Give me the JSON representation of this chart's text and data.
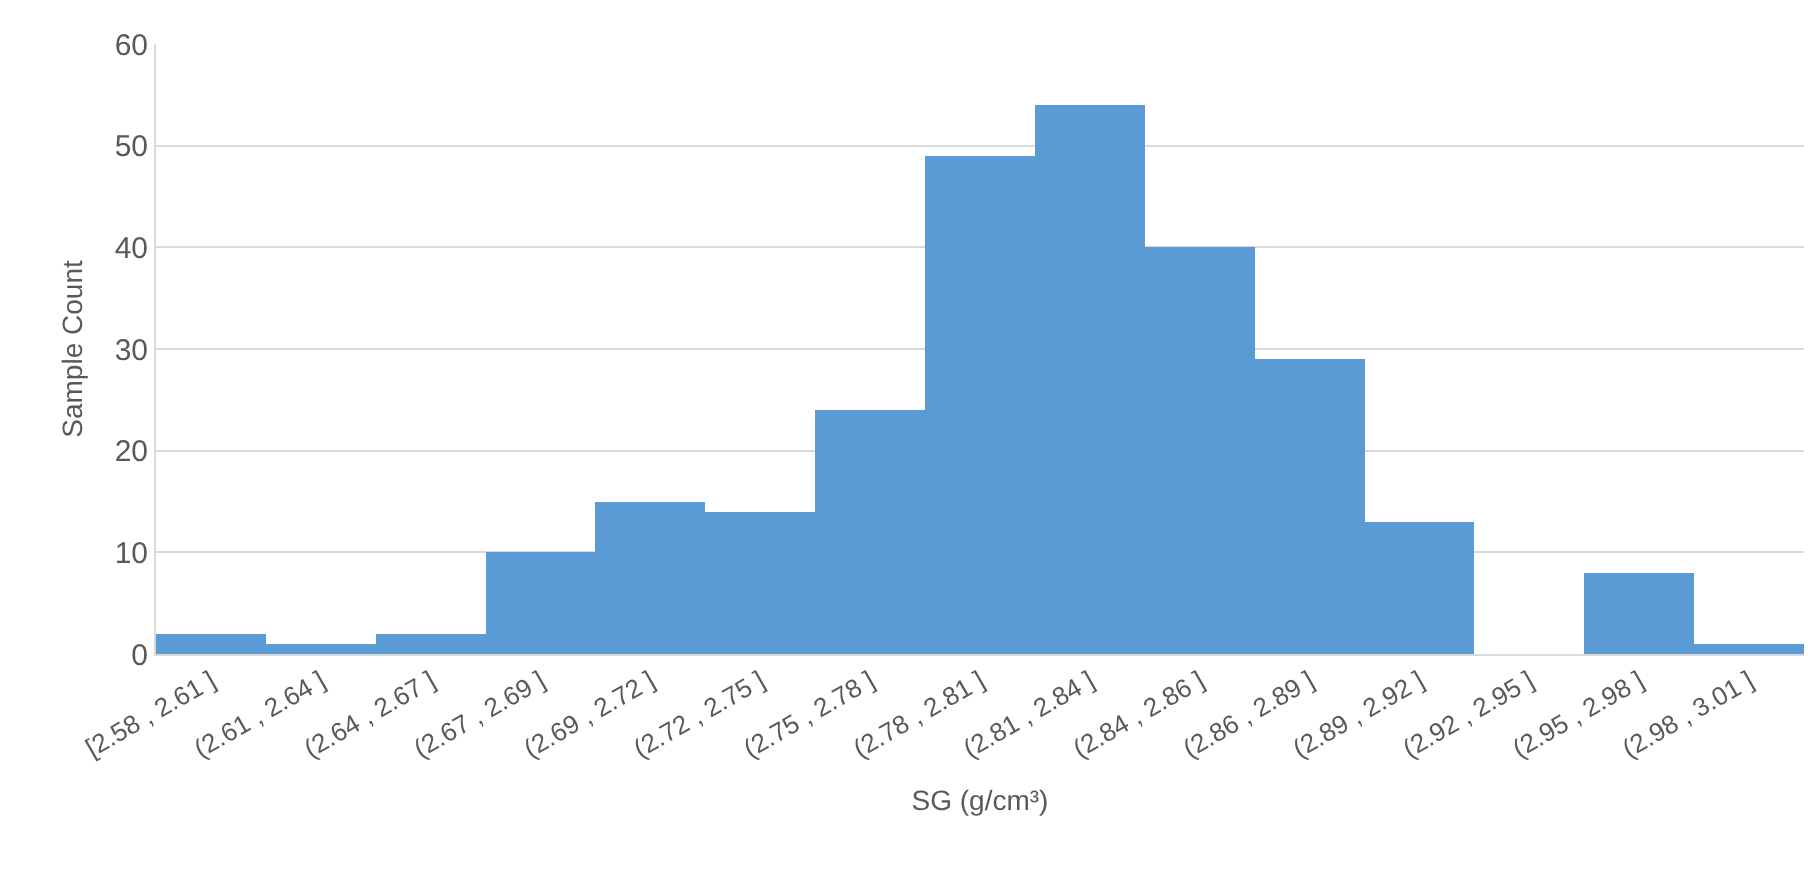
{
  "chart_data": {
    "type": "bar",
    "xlabel": "SG (g/cm³)",
    "ylabel": "Sample Count",
    "categories": [
      "[2.58 , 2.61 ]",
      "(2.61 , 2.64 ]",
      "(2.64 , 2.67 ]",
      "(2.67 , 2.69 ]",
      "(2.69 , 2.72 ]",
      "(2.72 , 2.75 ]",
      "(2.75 , 2.78 ]",
      "(2.78 , 2.81 ]",
      "(2.81 , 2.84 ]",
      "(2.84 , 2.86 ]",
      "(2.86 , 2.89 ]",
      "(2.89 , 2.92 ]",
      "(2.92 , 2.95 ]",
      "(2.95 , 2.98 ]",
      "(2.98 , 3.01 ]"
    ],
    "values": [
      2,
      1,
      2,
      10,
      15,
      14,
      24,
      49,
      54,
      40,
      29,
      13,
      0,
      8,
      1
    ],
    "color": "#5b9bd5",
    "ylim": [
      0,
      60
    ],
    "yticks": [
      0,
      10,
      20,
      30,
      40,
      50,
      60
    ],
    "grid": "y"
  }
}
